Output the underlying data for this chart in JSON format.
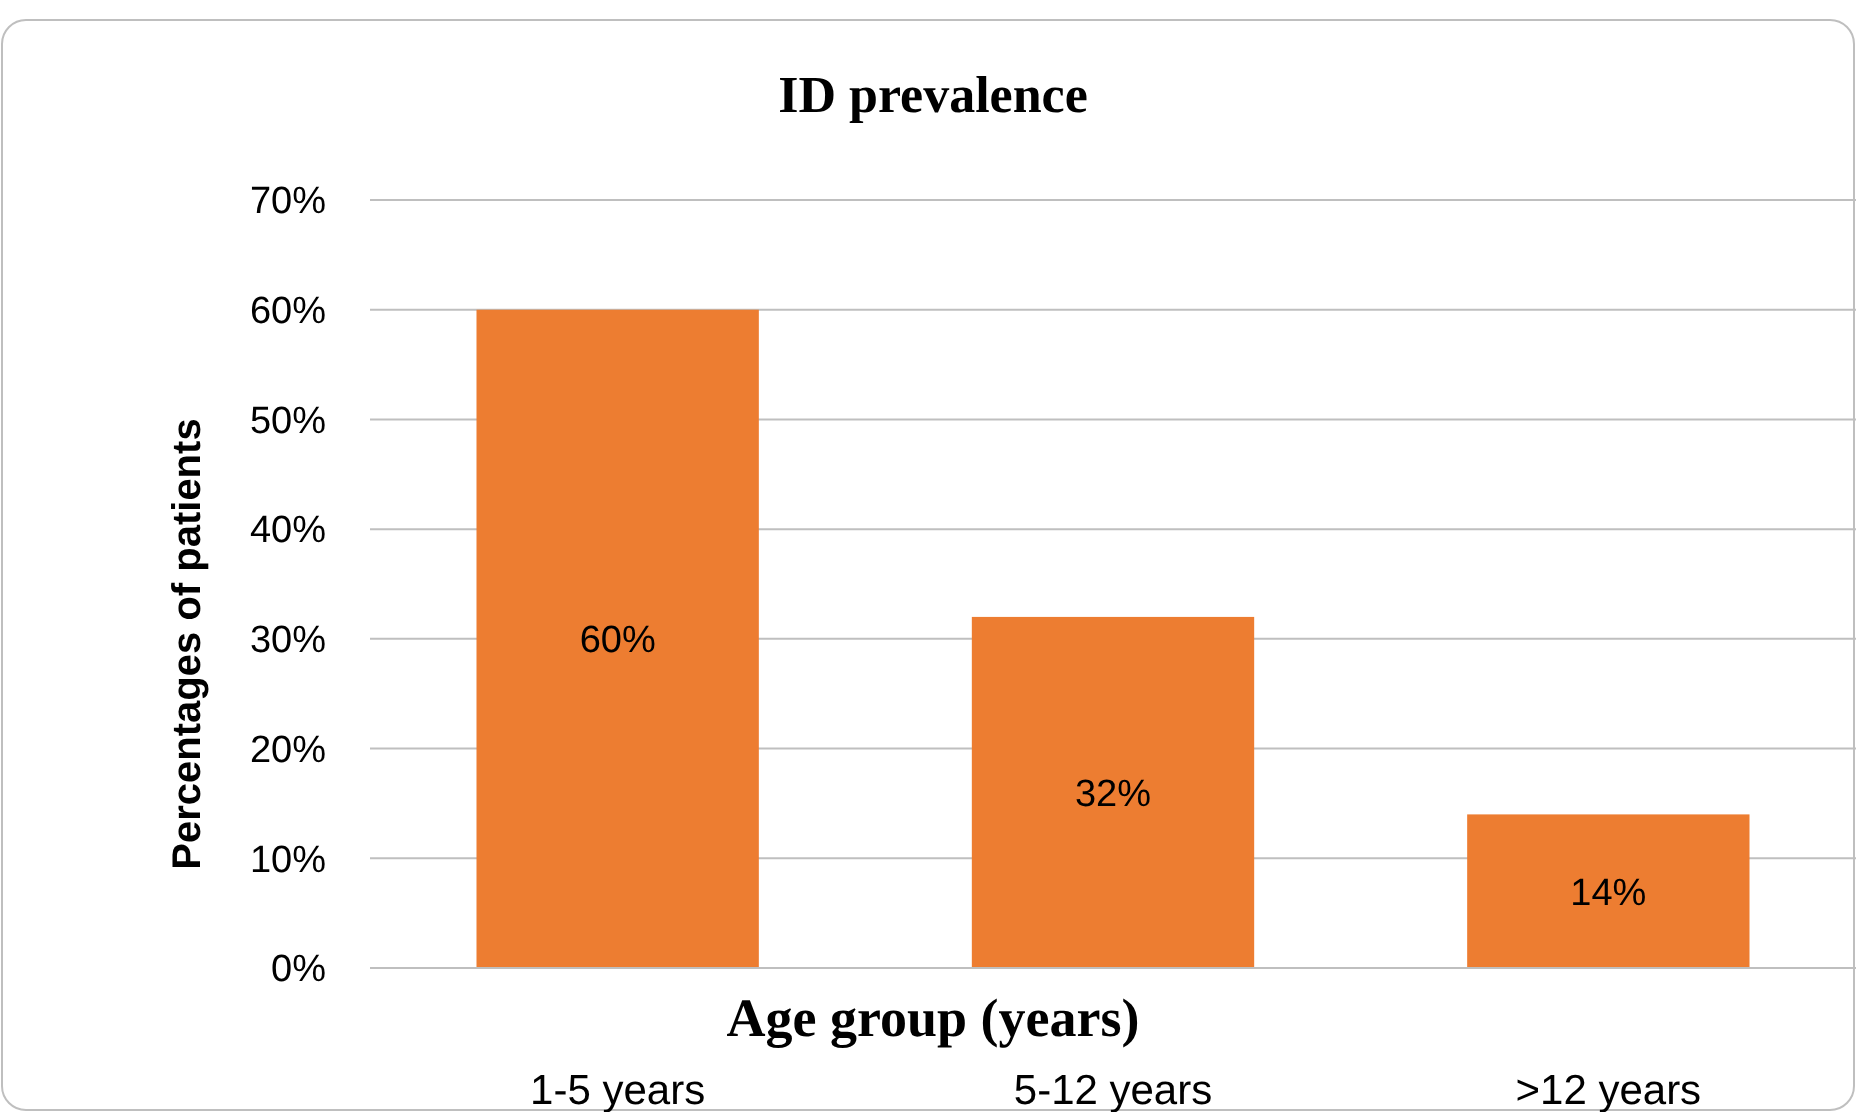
{
  "chart_data": {
    "type": "bar",
    "title": "ID prevalence",
    "xlabel": "Age group (years)",
    "ylabel": "Percentages of patients",
    "categories": [
      "1-5 years",
      "5-12 years",
      ">12 years"
    ],
    "values": [
      60,
      32,
      14
    ],
    "color": "#ed7d31",
    "value_labels": [
      "60%",
      "32%",
      "14%"
    ],
    "ylim": [
      0,
      70
    ],
    "yticks": [
      {
        "value": 0,
        "label": "0%"
      },
      {
        "value": 10,
        "label": "10%"
      },
      {
        "value": 20,
        "label": "20%"
      },
      {
        "value": 30,
        "label": "30%"
      },
      {
        "value": 40,
        "label": "40%"
      },
      {
        "value": 50,
        "label": "50%"
      },
      {
        "value": 60,
        "label": "60%"
      },
      {
        "value": 70,
        "label": "70%"
      }
    ],
    "grid": "y"
  }
}
